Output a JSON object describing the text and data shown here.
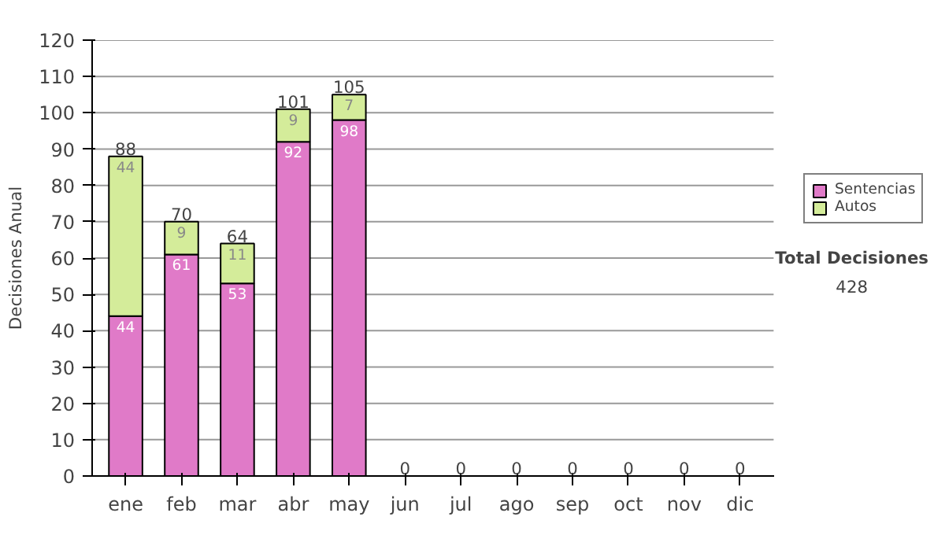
{
  "chart_data": {
    "type": "bar",
    "stacked": true,
    "ylabel": "Decisiones Anual",
    "categories": [
      "ene",
      "feb",
      "mar",
      "abr",
      "may",
      "jun",
      "jul",
      "ago",
      "sep",
      "oct",
      "nov",
      "dic"
    ],
    "series": [
      {
        "name": "Sentencias",
        "color": "#e07ac8",
        "values": [
          44,
          61,
          53,
          92,
          98,
          0,
          0,
          0,
          0,
          0,
          0,
          0
        ],
        "value_labels": [
          "44",
          "61",
          "53",
          "92",
          "98",
          null,
          null,
          null,
          null,
          null,
          null,
          null
        ]
      },
      {
        "name": "Autos",
        "color": "#d4ec9a",
        "values": [
          44,
          9,
          11,
          9,
          7,
          0,
          0,
          0,
          0,
          0,
          0,
          0
        ],
        "value_labels": [
          "44",
          "9",
          "11",
          "9",
          "7",
          null,
          null,
          null,
          null,
          null,
          null,
          null
        ]
      }
    ],
    "totals": [
      "88",
      "70",
      "64",
      "101",
      "105",
      "0",
      "0",
      "0",
      "0",
      "0",
      "0",
      "0"
    ],
    "ylim": [
      0,
      120
    ],
    "yticks": [
      0,
      10,
      20,
      30,
      40,
      50,
      60,
      70,
      80,
      90,
      100,
      110,
      120
    ],
    "grid": "y",
    "legend": "right",
    "annotations": [
      "Total Decisiones",
      "428"
    ]
  }
}
